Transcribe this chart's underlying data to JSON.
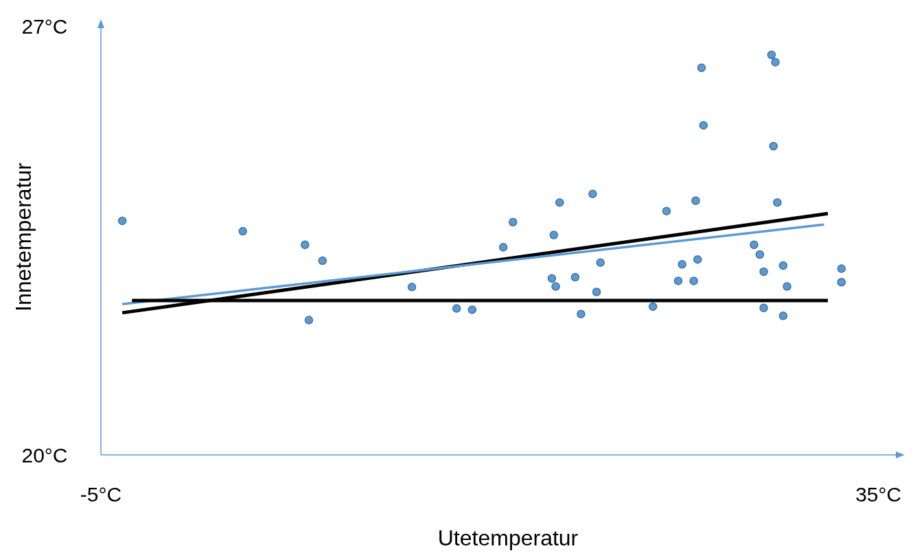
{
  "chart_data": {
    "type": "scatter",
    "xlabel": "Utetemperatur",
    "ylabel": "Innetemperatur",
    "xlim": [
      -5,
      36
    ],
    "ylim": [
      20,
      27
    ],
    "xticks": [
      {
        "value": -5,
        "label": "-5°C"
      },
      {
        "value": 35,
        "label": "35°C"
      }
    ],
    "yticks": [
      {
        "value": 20,
        "label": "20°C"
      },
      {
        "value": 27,
        "label": "27°C"
      }
    ],
    "grid": false,
    "series": [
      {
        "marker": "circle",
        "color": "#5b9bd5",
        "x": [
          -3.9,
          2.3,
          5.5,
          6.4,
          5.7,
          11.0,
          13.3,
          14.1,
          15.7,
          16.2,
          18.2,
          18.4,
          18.3,
          18.6,
          19.4,
          19.7,
          20.3,
          20.5,
          20.7,
          23.4,
          24.1,
          24.7,
          24.9,
          25.5,
          25.7,
          25.6,
          25.9,
          26.0,
          28.6,
          28.9,
          29.1,
          29.1,
          29.5,
          29.7,
          29.6,
          29.8,
          30.1,
          30.3,
          30.1,
          33.1,
          33.1
        ],
        "values": [
          23.82,
          23.65,
          23.43,
          23.17,
          22.2,
          22.74,
          22.39,
          22.37,
          23.39,
          23.8,
          22.88,
          22.75,
          23.59,
          24.12,
          22.9,
          22.3,
          24.26,
          22.66,
          23.14,
          22.42,
          23.98,
          22.84,
          23.11,
          22.84,
          23.19,
          24.15,
          26.32,
          25.38,
          23.43,
          23.27,
          22.99,
          22.4,
          26.53,
          26.41,
          25.04,
          24.12,
          23.09,
          22.75,
          22.27,
          23.04,
          22.82
        ]
      },
      {
        "type": "line",
        "color": "#000000",
        "x": [
          -3.9,
          32.4
        ],
        "values": [
          22.32,
          23.94
        ]
      },
      {
        "type": "line",
        "color": "#5b9bd5",
        "x": [
          -3.9,
          32.2
        ],
        "values": [
          22.46,
          23.76
        ]
      },
      {
        "type": "line",
        "color": "#000000",
        "x": [
          -3.4,
          32.4
        ],
        "values": [
          22.52,
          22.52
        ]
      }
    ]
  }
}
